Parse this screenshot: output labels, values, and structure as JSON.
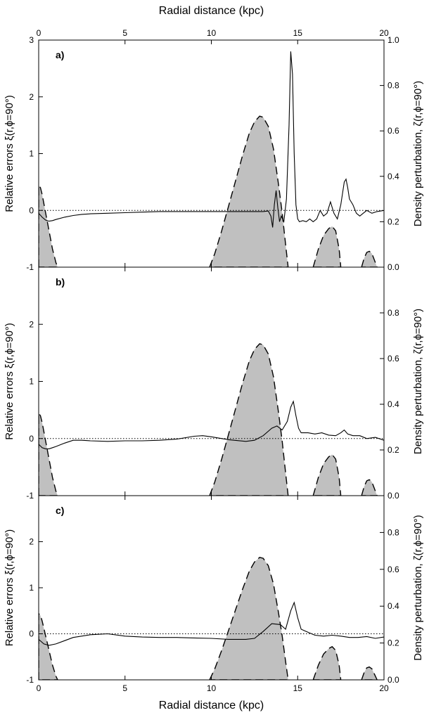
{
  "chart_data": {
    "type": "line",
    "top_xlabel": "Radial distance (kpc)",
    "bottom_xlabel": "Radial distance (kpc)",
    "xlim": [
      0,
      20
    ],
    "x_ticks": [
      "0",
      "5",
      "10",
      "15",
      "20"
    ],
    "left_ylim": [
      -1,
      3
    ],
    "left_ticks_top_panel": [
      "-1",
      "0",
      "1",
      "2",
      "3"
    ],
    "left_ticks_other_panels": [
      "-1",
      "0",
      "1",
      "2"
    ],
    "right_ylim": [
      0,
      1
    ],
    "right_ticks_top_panel": [
      "0.0",
      "0.2",
      "0.4",
      "0.6",
      "0.8",
      "1.0"
    ],
    "right_ticks_other_panels": [
      "0.0",
      "0.2",
      "0.4",
      "0.6",
      "0.8"
    ],
    "left_ylabel": "Relative errors ξ(r,ϕ=90°)",
    "right_ylabel": "Density perturbation, ζ(r,ϕ=90°)",
    "density_perturbation": {
      "x": [
        0,
        0.1,
        0.2,
        0.3,
        0.4,
        0.5,
        0.6,
        0.7,
        0.8,
        0.9,
        1.0,
        1.1,
        9.9,
        10.2,
        10.6,
        11.0,
        11.4,
        11.8,
        12.2,
        12.5,
        12.8,
        13.0,
        13.3,
        13.6,
        13.9,
        14.1,
        14.3,
        14.45,
        15.9,
        16.2,
        16.5,
        16.8,
        17.0,
        17.2,
        17.4,
        17.5,
        18.7,
        18.85,
        19.0,
        19.15,
        19.3,
        19.45,
        19.6
      ],
      "y": [
        0.36,
        0.35,
        0.32,
        0.28,
        0.24,
        0.2,
        0.16,
        0.12,
        0.08,
        0.05,
        0.02,
        0.0,
        0.0,
        0.06,
        0.16,
        0.27,
        0.38,
        0.49,
        0.59,
        0.64,
        0.665,
        0.66,
        0.62,
        0.52,
        0.36,
        0.24,
        0.1,
        0.0,
        0.0,
        0.08,
        0.14,
        0.17,
        0.18,
        0.16,
        0.08,
        0.0,
        0.0,
        0.04,
        0.065,
        0.07,
        0.06,
        0.03,
        0.0
      ]
    },
    "panels": [
      {
        "label": "a)",
        "relative_error": {
          "x": [
            0,
            0.2,
            0.4,
            0.6,
            0.8,
            1,
            1.5,
            2,
            2.5,
            3,
            4,
            5,
            6,
            7,
            8,
            9,
            10,
            11,
            12,
            13,
            13.3,
            13.45,
            13.55,
            13.65,
            13.75,
            13.85,
            13.95,
            14.05,
            14.2,
            14.35,
            14.5,
            14.6,
            14.7,
            14.8,
            14.9,
            15.0,
            15.1,
            15.3,
            15.5,
            15.7,
            15.9,
            16.1,
            16.3,
            16.5,
            16.7,
            16.9,
            17.1,
            17.3,
            17.5,
            17.7,
            17.8,
            17.9,
            18.0,
            18.2,
            18.4,
            18.6,
            18.8,
            19.0,
            19.3,
            19.6,
            20
          ],
          "y": [
            -0.05,
            -0.12,
            -0.17,
            -0.19,
            -0.18,
            -0.16,
            -0.12,
            -0.09,
            -0.07,
            -0.06,
            -0.05,
            -0.04,
            -0.03,
            -0.02,
            -0.02,
            -0.02,
            -0.02,
            -0.02,
            -0.02,
            -0.02,
            -0.01,
            -0.1,
            -0.3,
            0.1,
            0.35,
            0.05,
            -0.2,
            -0.1,
            -0.2,
            0.2,
            1.5,
            2.8,
            2.4,
            1.0,
            0.1,
            -0.15,
            -0.2,
            -0.18,
            -0.2,
            -0.15,
            -0.2,
            -0.15,
            0.0,
            -0.1,
            -0.05,
            0.15,
            -0.05,
            -0.15,
            0.1,
            0.5,
            0.55,
            0.4,
            0.2,
            0.1,
            -0.05,
            -0.1,
            -0.05,
            0.0,
            -0.05,
            -0.02,
            0.0
          ]
        }
      },
      {
        "label": "b)",
        "relative_error": {
          "x": [
            0,
            0.2,
            0.4,
            0.6,
            0.8,
            1,
            1.5,
            2,
            2.5,
            3,
            4,
            5,
            6,
            7,
            8,
            9,
            9.5,
            10,
            11,
            12,
            12.5,
            13,
            13.5,
            13.8,
            14.1,
            14.4,
            14.6,
            14.75,
            14.9,
            15.05,
            15.2,
            15.6,
            16,
            16.4,
            16.8,
            17.2,
            17.5,
            17.7,
            17.9,
            18.2,
            18.6,
            19,
            19.5,
            20
          ],
          "y": [
            -0.1,
            -0.16,
            -0.18,
            -0.18,
            -0.16,
            -0.14,
            -0.08,
            -0.03,
            -0.03,
            -0.04,
            -0.05,
            -0.04,
            -0.04,
            -0.03,
            -0.01,
            0.04,
            0.05,
            0.03,
            -0.02,
            -0.05,
            -0.03,
            0.05,
            0.18,
            0.22,
            0.15,
            0.3,
            0.55,
            0.65,
            0.4,
            0.18,
            0.1,
            0.1,
            0.08,
            0.1,
            0.06,
            0.05,
            0.1,
            0.15,
            0.08,
            0.05,
            0.05,
            0.0,
            0.02,
            -0.03
          ]
        }
      },
      {
        "label": "c)",
        "relative_error": {
          "x": [
            0,
            0.3,
            0.6,
            1,
            1.5,
            2,
            3,
            4,
            5,
            6,
            7,
            8,
            9,
            10,
            11,
            12,
            12.5,
            13,
            13.5,
            14,
            14.3,
            14.6,
            14.8,
            15.0,
            15.2,
            15.5,
            16,
            16.5,
            17,
            17.5,
            18,
            18.5,
            19,
            19.5,
            20
          ],
          "y": [
            -0.12,
            -0.22,
            -0.25,
            -0.22,
            -0.15,
            -0.08,
            -0.02,
            0.0,
            -0.05,
            -0.07,
            -0.08,
            -0.08,
            -0.09,
            -0.1,
            -0.12,
            -0.12,
            -0.1,
            0.05,
            0.22,
            0.2,
            0.1,
            0.5,
            0.68,
            0.35,
            0.1,
            0.05,
            -0.03,
            -0.05,
            -0.03,
            -0.05,
            -0.08,
            -0.08,
            -0.06,
            -0.1,
            -0.07
          ]
        }
      }
    ]
  }
}
